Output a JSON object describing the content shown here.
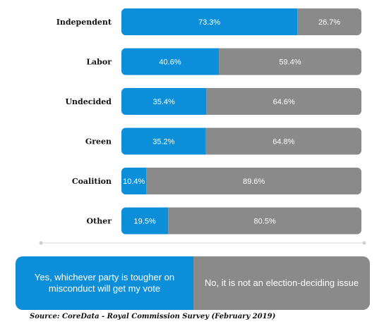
{
  "chart_data": {
    "type": "bar",
    "orientation": "horizontal",
    "stacked": true,
    "categories": [
      "Independent",
      "Labor",
      "Undecided",
      "Green",
      "Coalition",
      "Other"
    ],
    "series": [
      {
        "name": "Yes, whichever party is tougher on misconduct will get my vote",
        "values": [
          73.3,
          40.6,
          35.4,
          35.2,
          10.4,
          19.5
        ],
        "labels": [
          "73.3%",
          "40.6%",
          "35.4%",
          "35.2%",
          "10.4%",
          "19.5%"
        ]
      },
      {
        "name": "No, it is not an election-deciding issue",
        "values": [
          26.7,
          59.4,
          64.6,
          64.8,
          89.6,
          80.5
        ],
        "labels": [
          "26.7%",
          "59.4%",
          "64.6%",
          "64.8%",
          "89.6%",
          "80.5%"
        ]
      }
    ],
    "xlim": [
      0,
      100
    ],
    "grid": false,
    "legend_position": "bottom"
  },
  "colors": {
    "yes": "#0c8fd8",
    "no": "#8a8a8a"
  },
  "source": "Source: CoreData - Royal Commission Survey (February 2019)"
}
